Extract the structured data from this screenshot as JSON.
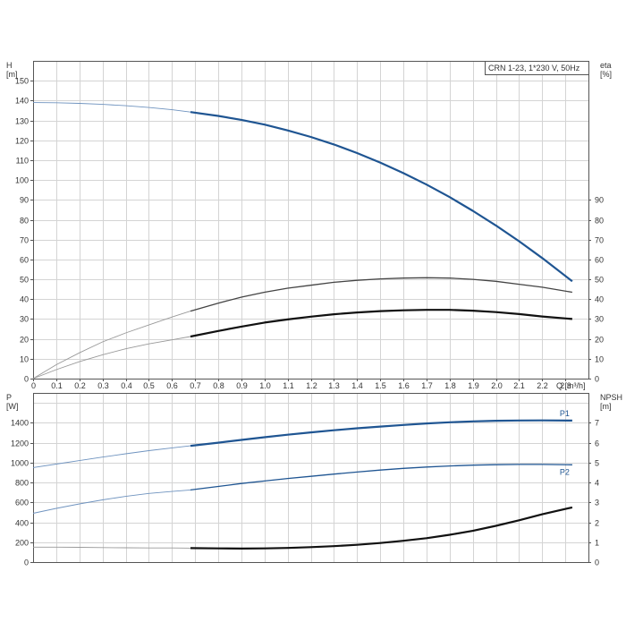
{
  "chart_data": [
    {
      "type": "line",
      "subtitle": "CRN 1-23, 1*230 V, 50Hz",
      "xlabel": "Q [m³/h]",
      "xlim": [
        0,
        2.4
      ],
      "x_ticks": [
        "0",
        "0.1",
        "0.2",
        "0.3",
        "0.4",
        "0.5",
        "0.6",
        "0.7",
        "0.8",
        "0.9",
        "1.0",
        "1.1",
        "1.2",
        "1.3",
        "1.4",
        "1.5",
        "1.6",
        "1.7",
        "1.8",
        "1.9",
        "2.0",
        "2.1",
        "2.2",
        "2.3"
      ],
      "left_axis": {
        "label": "H\n[m]",
        "lim": [
          0,
          160
        ],
        "ticks": [
          "0",
          "10",
          "20",
          "30",
          "40",
          "50",
          "60",
          "70",
          "80",
          "90",
          "100",
          "110",
          "120",
          "130",
          "140",
          "150"
        ]
      },
      "right_axis": {
        "label": "eta\n[%]",
        "lim": [
          0,
          160
        ],
        "ticks": [
          "0",
          "10",
          "20",
          "30",
          "40",
          "50",
          "60",
          "70",
          "80",
          "90"
        ]
      },
      "grid": true,
      "series": [
        {
          "key": "H",
          "axis": "left",
          "color": "#1f5592",
          "x": [
            0,
            0.1,
            0.2,
            0.3,
            0.4,
            0.5,
            0.6,
            0.68,
            0.8,
            0.9,
            1.0,
            1.1,
            1.2,
            1.3,
            1.4,
            1.5,
            1.6,
            1.7,
            1.8,
            1.9,
            2.0,
            2.1,
            2.2,
            2.33
          ],
          "y": [
            139,
            138.9,
            138.6,
            138.1,
            137.4,
            136.5,
            135.4,
            134.2,
            132.3,
            130.3,
            127.9,
            125,
            121.7,
            117.9,
            113.6,
            108.8,
            103.5,
            97.7,
            91.4,
            84.5,
            77.1,
            69.2,
            60.7,
            49
          ]
        },
        {
          "key": "eta-outer",
          "axis": "right",
          "color": "#444444",
          "x": [
            0,
            0.1,
            0.2,
            0.3,
            0.4,
            0.5,
            0.6,
            0.68,
            0.8,
            0.9,
            1.0,
            1.1,
            1.2,
            1.3,
            1.4,
            1.5,
            1.6,
            1.7,
            1.8,
            1.9,
            2.0,
            2.1,
            2.2,
            2.33
          ],
          "y": [
            0,
            7,
            13,
            18.5,
            23,
            27,
            31,
            34,
            38,
            41,
            43.5,
            45.5,
            47,
            48.5,
            49.5,
            50.2,
            50.6,
            50.8,
            50.6,
            50,
            49,
            47.5,
            46,
            43.5
          ]
        },
        {
          "key": "eta-inner",
          "axis": "right",
          "color": "#111111",
          "x": [
            0,
            0.1,
            0.2,
            0.3,
            0.4,
            0.5,
            0.6,
            0.68,
            0.8,
            0.9,
            1.0,
            1.1,
            1.2,
            1.3,
            1.4,
            1.5,
            1.6,
            1.7,
            1.8,
            1.9,
            2.0,
            2.1,
            2.2,
            2.33
          ],
          "y": [
            0,
            4.5,
            8.5,
            12,
            15,
            17.5,
            19.5,
            21.2,
            24,
            26.2,
            28.2,
            29.8,
            31.2,
            32.4,
            33.3,
            34,
            34.4,
            34.6,
            34.6,
            34.2,
            33.5,
            32.5,
            31.3,
            30
          ]
        }
      ]
    },
    {
      "type": "line",
      "xlim": [
        0,
        2.4
      ],
      "left_axis": {
        "label": "P\n[W]",
        "lim": [
          0,
          1700
        ],
        "ticks": [
          "0",
          "200",
          "400",
          "600",
          "800",
          "1000",
          "1200",
          "1400"
        ]
      },
      "right_axis": {
        "label": "NPSH\n[m]",
        "lim": [
          0,
          8.5
        ],
        "ticks": [
          "0",
          "1",
          "2",
          "3",
          "4",
          "5",
          "6",
          "7"
        ]
      },
      "grid": true,
      "series": [
        {
          "key": "P1",
          "name": "P1",
          "axis": "left",
          "color": "#1f5592",
          "x": [
            0,
            0.1,
            0.2,
            0.3,
            0.4,
            0.5,
            0.6,
            0.68,
            0.8,
            0.9,
            1.0,
            1.1,
            1.2,
            1.3,
            1.4,
            1.5,
            1.6,
            1.7,
            1.8,
            1.9,
            2.0,
            2.1,
            2.2,
            2.33
          ],
          "y": [
            950,
            985,
            1020,
            1055,
            1088,
            1120,
            1148,
            1168,
            1200,
            1228,
            1255,
            1280,
            1303,
            1325,
            1345,
            1362,
            1378,
            1393,
            1405,
            1414,
            1420,
            1423,
            1424,
            1422
          ]
        },
        {
          "key": "P2",
          "name": "P2",
          "axis": "left",
          "color": "#1f5592",
          "x": [
            0,
            0.1,
            0.2,
            0.3,
            0.4,
            0.5,
            0.6,
            0.68,
            0.8,
            0.9,
            1.0,
            1.1,
            1.2,
            1.3,
            1.4,
            1.5,
            1.6,
            1.7,
            1.8,
            1.9,
            2.0,
            2.1,
            2.2,
            2.33
          ],
          "y": [
            490,
            540,
            585,
            625,
            660,
            690,
            710,
            725,
            760,
            790,
            815,
            840,
            862,
            884,
            905,
            925,
            942,
            955,
            966,
            974,
            979,
            981,
            981,
            978
          ]
        },
        {
          "key": "NPSH",
          "axis": "right",
          "color": "#111111",
          "x": [
            0,
            0.1,
            0.2,
            0.3,
            0.4,
            0.5,
            0.6,
            0.68,
            0.8,
            0.9,
            1.0,
            1.1,
            1.2,
            1.3,
            1.4,
            1.5,
            1.6,
            1.7,
            1.8,
            1.9,
            2.0,
            2.1,
            2.2,
            2.33
          ],
          "y": [
            0.75,
            0.75,
            0.74,
            0.73,
            0.72,
            0.71,
            0.71,
            0.7,
            0.69,
            0.68,
            0.69,
            0.71,
            0.75,
            0.8,
            0.87,
            0.96,
            1.07,
            1.2,
            1.37,
            1.57,
            1.82,
            2.1,
            2.4,
            2.75
          ]
        }
      ]
    }
  ]
}
